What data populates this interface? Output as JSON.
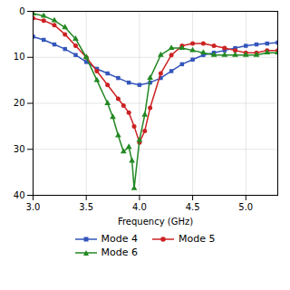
{
  "chart_data": {
    "type": "line",
    "xlabel": "Frequency (GHz)",
    "xlim": [
      3.0,
      5.3
    ],
    "ylim": [
      40,
      0
    ],
    "xticks": [
      {
        "value": 3.0,
        "label": "3.0"
      },
      {
        "value": 3.5,
        "label": "3.5"
      },
      {
        "value": 4.0,
        "label": "4.0"
      },
      {
        "value": 4.5,
        "label": "4.5"
      },
      {
        "value": 5.0,
        "label": "5.0"
      }
    ],
    "yticks": [
      0,
      10,
      20,
      30,
      40
    ],
    "grid": true,
    "legend": "bottom",
    "series": [
      {
        "name": "Mode 4",
        "color": "#3355bb",
        "marker": "square",
        "x": [
          3.0,
          3.1,
          3.2,
          3.3,
          3.4,
          3.5,
          3.6,
          3.7,
          3.8,
          3.9,
          4.0,
          4.1,
          4.2,
          4.3,
          4.4,
          4.5,
          4.6,
          4.7,
          4.8,
          4.9,
          5.0,
          5.1,
          5.2,
          5.3
        ],
        "values": [
          5.5,
          6.2,
          7.2,
          8.2,
          9.5,
          11.0,
          12.5,
          13.5,
          14.5,
          15.5,
          16.0,
          15.5,
          14.5,
          13.0,
          11.5,
          10.5,
          9.5,
          9.0,
          8.5,
          8.0,
          7.5,
          7.2,
          7.0,
          6.8
        ]
      },
      {
        "name": "Mode 5",
        "color": "#cc2222",
        "marker": "circle",
        "x": [
          3.0,
          3.1,
          3.2,
          3.3,
          3.4,
          3.5,
          3.6,
          3.7,
          3.8,
          3.85,
          3.9,
          3.95,
          4.0,
          4.05,
          4.1,
          4.2,
          4.3,
          4.4,
          4.5,
          4.6,
          4.7,
          4.8,
          4.9,
          5.0,
          5.1,
          5.2,
          5.3
        ],
        "values": [
          1.5,
          2.0,
          3.0,
          5.0,
          7.5,
          10.0,
          13.0,
          16.0,
          19.0,
          20.5,
          22.0,
          25.0,
          28.5,
          26.0,
          21.0,
          13.5,
          9.5,
          7.5,
          7.0,
          7.0,
          7.5,
          8.0,
          8.5,
          9.0,
          9.0,
          8.5,
          8.5
        ]
      },
      {
        "name": "Mode 6",
        "color": "#228822",
        "marker": "triangle",
        "x": [
          3.0,
          3.1,
          3.2,
          3.3,
          3.4,
          3.5,
          3.6,
          3.7,
          3.75,
          3.8,
          3.85,
          3.9,
          3.93,
          3.95,
          4.0,
          4.05,
          4.1,
          4.2,
          4.3,
          4.4,
          4.5,
          4.6,
          4.7,
          4.8,
          4.9,
          5.0,
          5.1,
          5.2,
          5.3
        ],
        "values": [
          0.5,
          1.0,
          2.0,
          3.5,
          6.0,
          10.0,
          15.0,
          20.0,
          23.0,
          27.0,
          30.5,
          29.5,
          32.5,
          38.5,
          28.0,
          22.5,
          14.5,
          9.5,
          8.0,
          8.0,
          8.5,
          9.0,
          9.5,
          9.5,
          9.5,
          9.5,
          9.5,
          9.0,
          9.0
        ]
      }
    ]
  }
}
